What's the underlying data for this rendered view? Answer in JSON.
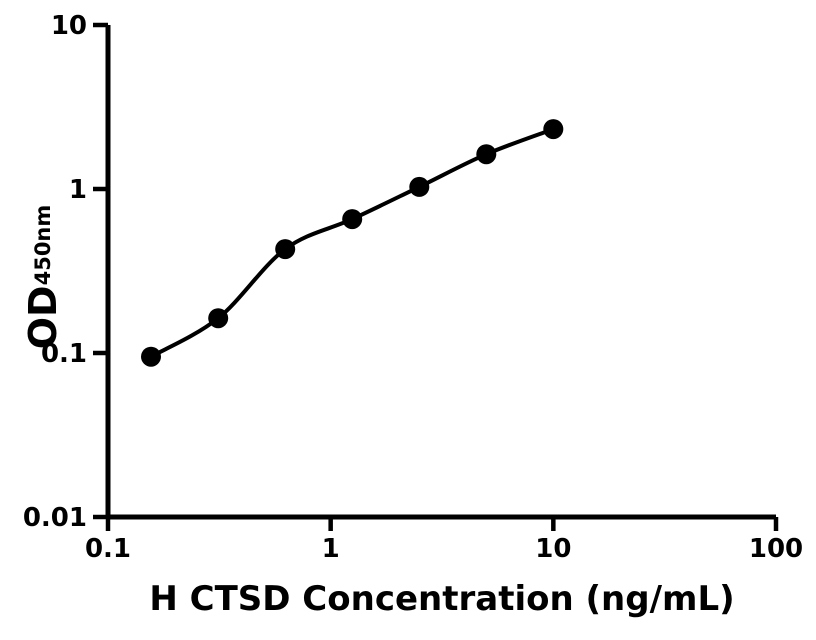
{
  "chart_data": {
    "type": "scatter",
    "subtype": "ELISA standard curve with fitted line",
    "xlabel": "H CTSD Concentration (ng/mL)",
    "ylabel": {
      "main": "OD",
      "sub": "450nm"
    },
    "xscale": "log",
    "yscale": "log",
    "xlim": [
      0.1,
      100
    ],
    "ylim": [
      0.01,
      10
    ],
    "xticks": {
      "values": [
        0.1,
        1,
        10,
        100
      ],
      "labels": [
        "0.1",
        "1",
        "10",
        "100"
      ]
    },
    "yticks": {
      "values": [
        0.01,
        0.1,
        1,
        10
      ],
      "labels": [
        "0.01",
        "0.1",
        "1",
        "10"
      ]
    },
    "grid": false,
    "legend": null,
    "colors": {
      "axis": "#000000",
      "marker": "#000000",
      "curve": "#000000",
      "background": "#ffffff"
    },
    "series": [
      {
        "name": "standard-curve",
        "marker": "filled-circle",
        "has_fit_curve": true,
        "points": [
          {
            "x": 0.156,
            "y": 0.095
          },
          {
            "x": 0.3125,
            "y": 0.163
          },
          {
            "x": 0.625,
            "y": 0.43
          },
          {
            "x": 1.25,
            "y": 0.655
          },
          {
            "x": 2.5,
            "y": 1.03
          },
          {
            "x": 5,
            "y": 1.63
          },
          {
            "x": 10,
            "y": 2.32
          }
        ]
      }
    ]
  }
}
